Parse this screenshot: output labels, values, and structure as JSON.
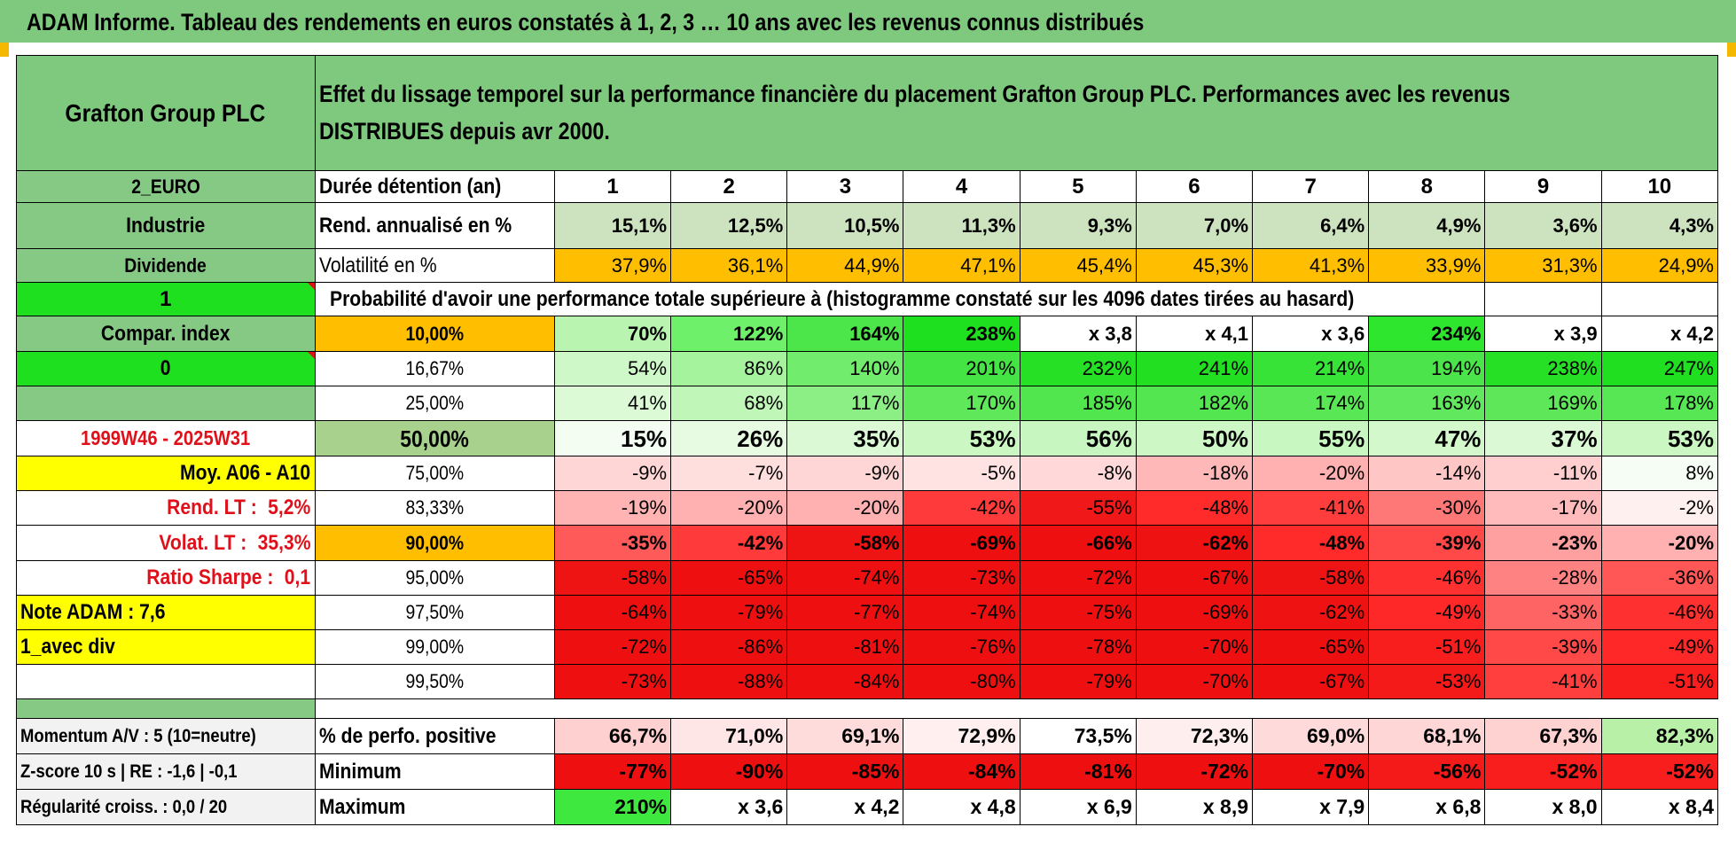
{
  "title": "ADAM Informe. Tableau des rendements en euros constatés à 1, 2, 3 … 10 ans avec les revenus connus distribués",
  "header": {
    "company": "Grafton Group PLC",
    "description_line1": "Effet du lissage temporel sur la performance financière du placement Grafton Group PLC. Performances avec les revenus",
    "description_line2": "DISTRIBUES depuis avr 2000."
  },
  "left_labels": {
    "currency": "2_EURO",
    "sector": "Industrie",
    "type": "Dividende",
    "flag1": "1",
    "compar_index": "Compar. index",
    "flag0": "0",
    "period": "1999W46 - 2025W31",
    "moy": "Moy. A06 - A10",
    "rend_lt_label": "Rend. LT :",
    "rend_lt_value": "5,2%",
    "volat_lt_label": "Volat. LT :",
    "volat_lt_value": "35,3%",
    "sharpe_label": "Ratio Sharpe :",
    "sharpe_value": "0,1",
    "note": "Note ADAM : 7,6",
    "avec_div": "1_avec div",
    "momentum": "Momentum A/V : 5 (10=neutre)",
    "zscore": "Z-score 10 s | RE : -1,6 | -0,1",
    "regularite": "Régularité croiss. : 0,0 / 20"
  },
  "row_labels": {
    "duree": "Durée détention (an)",
    "rend": "Rend. annualisé en %",
    "vol": "Volatilité en %",
    "probability": "Probabilité d'avoir une performance totale supérieure à (histogramme constaté sur les 4096 dates tirées au hasard)",
    "positive": "% de perfo. positive",
    "minimum": "Minimum",
    "maximum": "Maximum"
  },
  "years": [
    "1",
    "2",
    "3",
    "4",
    "5",
    "6",
    "7",
    "8",
    "9",
    "10"
  ],
  "rend_values": [
    "15,1%",
    "12,5%",
    "10,5%",
    "11,3%",
    "9,3%",
    "7,0%",
    "6,4%",
    "4,9%",
    "3,6%",
    "4,3%"
  ],
  "vol_values": [
    "37,9%",
    "36,1%",
    "44,9%",
    "47,1%",
    "45,4%",
    "45,3%",
    "41,3%",
    "33,9%",
    "31,3%",
    "24,9%"
  ],
  "percentiles": [
    {
      "p": "10,00%",
      "values": [
        "70%",
        "122%",
        "164%",
        "238%",
        "x 3,8",
        "x 4,1",
        "x 3,6",
        "234%",
        "x 3,9",
        "x 4,2"
      ],
      "colors": [
        "#b9f5b0",
        "#6ff06a",
        "#4de64a",
        "#1fe01f",
        "#ffffff",
        "#ffffff",
        "#ffffff",
        "#2ee62e",
        "#ffffff",
        "#ffffff"
      ]
    },
    {
      "p": "16,67%",
      "values": [
        "54%",
        "86%",
        "140%",
        "201%",
        "232%",
        "241%",
        "214%",
        "194%",
        "238%",
        "247%"
      ],
      "colors": [
        "#cff8c8",
        "#a6f39e",
        "#72ec6d",
        "#44e444",
        "#26e026",
        "#22df22",
        "#38e338",
        "#4be54b",
        "#26e026",
        "#20df20"
      ]
    },
    {
      "p": "25,00%",
      "values": [
        "41%",
        "68%",
        "117%",
        "170%",
        "185%",
        "182%",
        "174%",
        "163%",
        "169%",
        "178%"
      ],
      "colors": [
        "#dcfad6",
        "#c0f6b8",
        "#8cef86",
        "#5ee85a",
        "#52e64e",
        "#54e651",
        "#5ae756",
        "#62e85e",
        "#5de759",
        "#57e654"
      ]
    },
    {
      "p": "50,00%",
      "values": [
        "15%",
        "26%",
        "35%",
        "53%",
        "56%",
        "50%",
        "55%",
        "47%",
        "37%",
        "53%"
      ],
      "colors": [
        "#f3fdf1",
        "#e6fbe2",
        "#dcf9d6",
        "#cbf7c3",
        "#c8f6c0",
        "#cef7c6",
        "#c9f7c1",
        "#d2f8cb",
        "#dbf9d5",
        "#cbf7c3"
      ]
    },
    {
      "p": "75,00%",
      "values": [
        "-9%",
        "-7%",
        "-9%",
        "-5%",
        "-8%",
        "-18%",
        "-20%",
        "-14%",
        "-11%",
        "8%"
      ],
      "colors": [
        "#ffd6d6",
        "#ffdede",
        "#ffd6d6",
        "#ffe3e3",
        "#ffd9d9",
        "#ffb8b8",
        "#ffb0b0",
        "#ffc6c6",
        "#ffcfcf",
        "#f6fdf5"
      ]
    },
    {
      "p": "83,33%",
      "values": [
        "-19%",
        "-20%",
        "-20%",
        "-42%",
        "-55%",
        "-48%",
        "-41%",
        "-30%",
        "-17%",
        "-2%"
      ],
      "colors": [
        "#ffb3b3",
        "#ffb0b0",
        "#ffb0b0",
        "#ff3a3a",
        "#f01818",
        "#ff2a2a",
        "#ff3d3d",
        "#ff7878",
        "#ffbbbb",
        "#fff0f0"
      ]
    },
    {
      "p": "90,00%",
      "values": [
        "-35%",
        "-42%",
        "-58%",
        "-69%",
        "-66%",
        "-62%",
        "-48%",
        "-39%",
        "-23%",
        "-20%"
      ],
      "colors": [
        "#ff5a5a",
        "#ff3a3a",
        "#ee1414",
        "#ee1010",
        "#ee1010",
        "#ee1212",
        "#ff2a2a",
        "#ff4848",
        "#ffa0a0",
        "#ffb0b0"
      ]
    },
    {
      "p": "95,00%",
      "values": [
        "-58%",
        "-65%",
        "-74%",
        "-73%",
        "-72%",
        "-67%",
        "-58%",
        "-46%",
        "-28%",
        "-36%"
      ],
      "colors": [
        "#ee1414",
        "#ee1010",
        "#ee1010",
        "#ee1010",
        "#ee1010",
        "#ee1010",
        "#ee1414",
        "#ff3030",
        "#ff8282",
        "#ff5656"
      ]
    },
    {
      "p": "97,50%",
      "values": [
        "-64%",
        "-79%",
        "-77%",
        "-74%",
        "-75%",
        "-69%",
        "-62%",
        "-49%",
        "-33%",
        "-46%"
      ],
      "colors": [
        "#ee1010",
        "#ee1010",
        "#ee1010",
        "#ee1010",
        "#ee1010",
        "#ee1010",
        "#ee1212",
        "#ff2828",
        "#ff6464",
        "#ff3030"
      ]
    },
    {
      "p": "99,00%",
      "values": [
        "-72%",
        "-86%",
        "-81%",
        "-76%",
        "-78%",
        "-70%",
        "-65%",
        "-51%",
        "-39%",
        "-49%"
      ],
      "colors": [
        "#ee1010",
        "#ee1010",
        "#ee1010",
        "#ee1010",
        "#ee1010",
        "#ee1010",
        "#ee1010",
        "#f81e1e",
        "#ff4848",
        "#ff2828"
      ]
    },
    {
      "p": "99,50%",
      "values": [
        "-73%",
        "-88%",
        "-84%",
        "-80%",
        "-79%",
        "-70%",
        "-67%",
        "-53%",
        "-41%",
        "-51%"
      ],
      "colors": [
        "#ee1010",
        "#ee1010",
        "#ee1010",
        "#ee1010",
        "#ee1010",
        "#ee1010",
        "#ee1010",
        "#f41a1a",
        "#ff3e3e",
        "#f81e1e"
      ]
    }
  ],
  "positive_values": [
    "66,7%",
    "71,0%",
    "69,1%",
    "72,9%",
    "73,5%",
    "72,3%",
    "69,0%",
    "68,1%",
    "67,3%",
    "82,3%"
  ],
  "positive_colors": [
    "#ffd0d0",
    "#ffe6e6",
    "#ffdcdc",
    "#ffefef",
    "#ffffff",
    "#ffeeee",
    "#ffdada",
    "#ffd6d6",
    "#ffd2d2",
    "#b8f0a8"
  ],
  "minimum_values": [
    "-77%",
    "-90%",
    "-85%",
    "-84%",
    "-81%",
    "-72%",
    "-70%",
    "-56%",
    "-52%",
    "-52%"
  ],
  "minimum_colors": [
    "#ee1010",
    "#ee1010",
    "#ee1010",
    "#ee1010",
    "#ee1010",
    "#ee1010",
    "#ee1010",
    "#f41a1a",
    "#f81e1e",
    "#f81e1e"
  ],
  "maximum_values": [
    "210%",
    "x 3,6",
    "x 4,2",
    "x 4,8",
    "x 6,9",
    "x 8,9",
    "x 7,9",
    "x 6,8",
    "x 8,0",
    "x 8,4"
  ],
  "maximum_colors": [
    "#3ee83e",
    "#ffffff",
    "#ffffff",
    "#ffffff",
    "#ffffff",
    "#ffffff",
    "#ffffff",
    "#ffffff",
    "#ffffff",
    "#ffffff"
  ]
}
